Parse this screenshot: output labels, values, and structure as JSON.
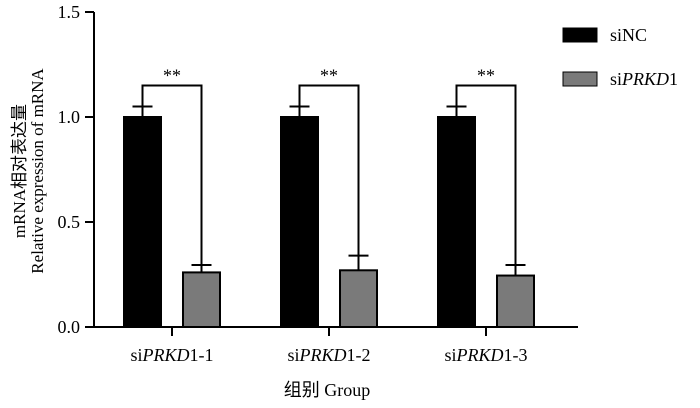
{
  "chart_data": {
    "type": "bar",
    "categories": [
      "siPRKD1-1",
      "siPRKD1-2",
      "siPRKD1-3"
    ],
    "category_labels": [
      {
        "pre": "si",
        "it": "PRKD",
        "post": "1-1"
      },
      {
        "pre": "si",
        "it": "PRKD",
        "post": "1-2"
      },
      {
        "pre": "si",
        "it": "PRKD",
        "post": "1-3"
      }
    ],
    "series": [
      {
        "name": "siNC",
        "legend": {
          "pre": "si",
          "it": "",
          "post": "NC"
        },
        "color": "#000000",
        "values": [
          1.0,
          1.0,
          1.0
        ],
        "errors": [
          0.05,
          0.05,
          0.05
        ]
      },
      {
        "name": "siPRKD1",
        "legend": {
          "pre": "si",
          "it": "PRKD",
          "post": "1"
        },
        "color": "#7a7a7a",
        "values": [
          0.26,
          0.27,
          0.245
        ],
        "errors": [
          0.035,
          0.07,
          0.05
        ]
      }
    ],
    "ylim": [
      0,
      1.5
    ],
    "yticks": [
      0.0,
      0.5,
      1.0,
      1.5
    ],
    "ytick_labels": [
      "0.0",
      "0.5",
      "1.0",
      "1.5"
    ],
    "ylabel_line1": "mRNA相对表达量",
    "ylabel_line2": "Relative expression of mRNA",
    "xlabel": "组别 Group",
    "significance": [
      {
        "category": 0,
        "label": "**",
        "bracket_y": 1.15
      },
      {
        "category": 1,
        "label": "**",
        "bracket_y": 1.15
      },
      {
        "category": 2,
        "label": "**",
        "bracket_y": 1.15
      }
    ],
    "legend_position": "top-right",
    "grid": false
  }
}
